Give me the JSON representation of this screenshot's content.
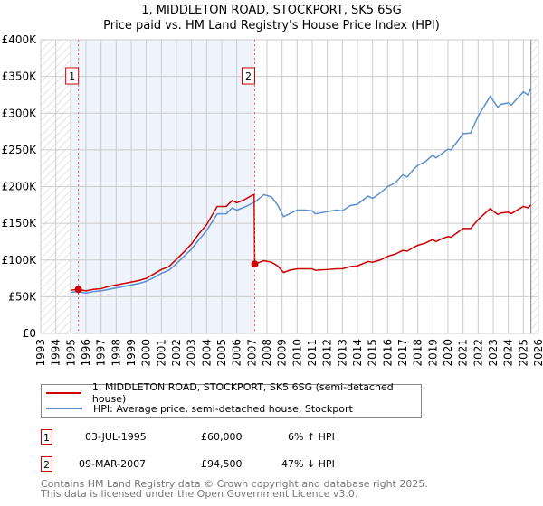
{
  "title_line1": "1, MIDDLETON ROAD, STOCKPORT, SK5 6SG",
  "title_line2": "Price paid vs. HM Land Registry's House Price Index (HPI)",
  "chart_data": {
    "type": "line",
    "title": "1, MIDDLETON ROAD, STOCKPORT, SK5 6SG — Price paid vs. HM Land Registry's House Price Index (HPI)",
    "xlim": [
      1993,
      2026
    ],
    "ylim": [
      0,
      400000
    ],
    "grid": true,
    "x_ticks": [
      "1993",
      "1994",
      "1995",
      "1996",
      "1997",
      "1998",
      "1999",
      "2000",
      "2001",
      "2002",
      "2003",
      "2004",
      "2005",
      "2006",
      "2007",
      "2008",
      "2009",
      "2010",
      "2011",
      "2012",
      "2013",
      "2014",
      "2015",
      "2016",
      "2017",
      "2018",
      "2019",
      "2020",
      "2021",
      "2022",
      "2023",
      "2024",
      "2025",
      "2026"
    ],
    "y_ticks": [
      {
        "v": 0,
        "label": "£0"
      },
      {
        "v": 50000,
        "label": "£50K"
      },
      {
        "v": 100000,
        "label": "£100K"
      },
      {
        "v": 150000,
        "label": "£150K"
      },
      {
        "v": 200000,
        "label": "£200K"
      },
      {
        "v": 250000,
        "label": "£250K"
      },
      {
        "v": 300000,
        "label": "£300K"
      },
      {
        "v": 350000,
        "label": "£350K"
      },
      {
        "v": 400000,
        "label": "£400K"
      }
    ],
    "shaded_period": [
      1995.0,
      2007.19
    ],
    "hatched_before": 1995.0,
    "hatched_after": 2025.5,
    "series": [
      {
        "name": "1, MIDDLETON ROAD, STOCKPORT, SK5 6SG (semi-detached house)",
        "color": "#cc0000",
        "points_k": [
          [
            1995,
            59
          ],
          [
            1995.5,
            60
          ],
          [
            1996,
            58
          ],
          [
            1996.5,
            60
          ],
          [
            1997,
            61
          ],
          [
            1997.5,
            64
          ],
          [
            1998,
            66
          ],
          [
            1998.5,
            68
          ],
          [
            1999,
            70
          ],
          [
            1999.5,
            72
          ],
          [
            2000,
            75
          ],
          [
            2000.5,
            81
          ],
          [
            2001,
            87
          ],
          [
            2001.5,
            91
          ],
          [
            2002,
            101
          ],
          [
            2002.5,
            111
          ],
          [
            2003,
            122
          ],
          [
            2003.5,
            136
          ],
          [
            2004,
            148
          ],
          [
            2004.7,
            173
          ],
          [
            2005.3,
            173
          ],
          [
            2005.7,
            181
          ],
          [
            2006,
            178
          ],
          [
            2006.5,
            182
          ],
          [
            2007,
            188
          ],
          [
            2007.15,
            189
          ],
          [
            2007.19,
            94.5
          ],
          [
            2007.8,
            99
          ],
          [
            2008.3,
            97
          ],
          [
            2008.7,
            92
          ],
          [
            2009.1,
            83
          ],
          [
            2009.5,
            86
          ],
          [
            2010,
            88
          ],
          [
            2010.5,
            88
          ],
          [
            2011,
            88
          ],
          [
            2011.2,
            86
          ],
          [
            2012,
            87
          ],
          [
            2012.6,
            88
          ],
          [
            2013,
            88
          ],
          [
            2013.5,
            91
          ],
          [
            2014,
            92
          ],
          [
            2014.7,
            98
          ],
          [
            2015,
            97
          ],
          [
            2015.5,
            100
          ],
          [
            2016,
            105
          ],
          [
            2016.5,
            108
          ],
          [
            2017,
            113
          ],
          [
            2017.3,
            112
          ],
          [
            2017.7,
            117
          ],
          [
            2018,
            120
          ],
          [
            2018.5,
            123
          ],
          [
            2019,
            128
          ],
          [
            2019.2,
            125
          ],
          [
            2019.6,
            129
          ],
          [
            2020,
            132
          ],
          [
            2020.2,
            131
          ],
          [
            2021,
            143
          ],
          [
            2021.5,
            143
          ],
          [
            2022,
            155
          ],
          [
            2022.8,
            170
          ],
          [
            2023.3,
            162
          ],
          [
            2023.5,
            164
          ],
          [
            2024,
            165
          ],
          [
            2024.2,
            163
          ],
          [
            2024.5,
            167
          ],
          [
            2025,
            173
          ],
          [
            2025.3,
            171
          ],
          [
            2025.5,
            175
          ]
        ]
      },
      {
        "name": "HPI: Average price, semi-detached house, Stockport",
        "color": "#5b8fd0",
        "points_k": [
          [
            1995,
            56
          ],
          [
            1995.5,
            57
          ],
          [
            1996,
            55
          ],
          [
            1996.5,
            57
          ],
          [
            1997,
            58
          ],
          [
            1997.5,
            60
          ],
          [
            1998,
            62
          ],
          [
            1998.5,
            64
          ],
          [
            1999,
            66
          ],
          [
            1999.5,
            68
          ],
          [
            2000,
            71
          ],
          [
            2000.5,
            76
          ],
          [
            2001,
            82
          ],
          [
            2001.5,
            86
          ],
          [
            2002,
            95
          ],
          [
            2002.5,
            105
          ],
          [
            2003,
            115
          ],
          [
            2003.5,
            128
          ],
          [
            2004,
            140
          ],
          [
            2004.7,
            163
          ],
          [
            2005.3,
            163
          ],
          [
            2005.7,
            171
          ],
          [
            2006,
            168
          ],
          [
            2006.5,
            172
          ],
          [
            2007,
            177
          ],
          [
            2007.2,
            179
          ],
          [
            2007.8,
            189
          ],
          [
            2008.3,
            186
          ],
          [
            2008.7,
            175
          ],
          [
            2009.1,
            159
          ],
          [
            2009.5,
            163
          ],
          [
            2010,
            168
          ],
          [
            2010.5,
            168
          ],
          [
            2011,
            167
          ],
          [
            2011.2,
            163
          ],
          [
            2012,
            166
          ],
          [
            2012.6,
            168
          ],
          [
            2013,
            167
          ],
          [
            2013.5,
            174
          ],
          [
            2014,
            176
          ],
          [
            2014.7,
            187
          ],
          [
            2015,
            184
          ],
          [
            2015.5,
            191
          ],
          [
            2016,
            200
          ],
          [
            2016.5,
            205
          ],
          [
            2017,
            216
          ],
          [
            2017.3,
            213
          ],
          [
            2017.7,
            223
          ],
          [
            2018,
            229
          ],
          [
            2018.5,
            234
          ],
          [
            2019,
            243
          ],
          [
            2019.2,
            239
          ],
          [
            2019.6,
            245
          ],
          [
            2020,
            251
          ],
          [
            2020.2,
            250
          ],
          [
            2021,
            272
          ],
          [
            2021.5,
            273
          ],
          [
            2022,
            296
          ],
          [
            2022.8,
            323
          ],
          [
            2023.3,
            308
          ],
          [
            2023.5,
            312
          ],
          [
            2024,
            314
          ],
          [
            2024.2,
            311
          ],
          [
            2024.5,
            318
          ],
          [
            2025,
            329
          ],
          [
            2025.3,
            325
          ],
          [
            2025.5,
            334
          ]
        ]
      }
    ],
    "sales": [
      {
        "id": "1",
        "x": 1995.5,
        "price": 60000
      },
      {
        "id": "2",
        "x": 2007.19,
        "price": 94500
      }
    ]
  },
  "legend": {
    "property": "1, MIDDLETON ROAD, STOCKPORT, SK5 6SG (semi-detached house)",
    "hpi": "HPI: Average price, semi-detached house, Stockport"
  },
  "transactions": [
    {
      "id": "1",
      "date": "03-JUL-1995",
      "price": "£60,000",
      "hpi": "6% ↑ HPI"
    },
    {
      "id": "2",
      "date": "09-MAR-2007",
      "price": "£94,500",
      "hpi": "47% ↓ HPI"
    }
  ],
  "footer": {
    "line1": "Contains HM Land Registry data © Crown copyright and database right 2025.",
    "line2": "This data is licensed under the Open Government Licence v3.0."
  }
}
